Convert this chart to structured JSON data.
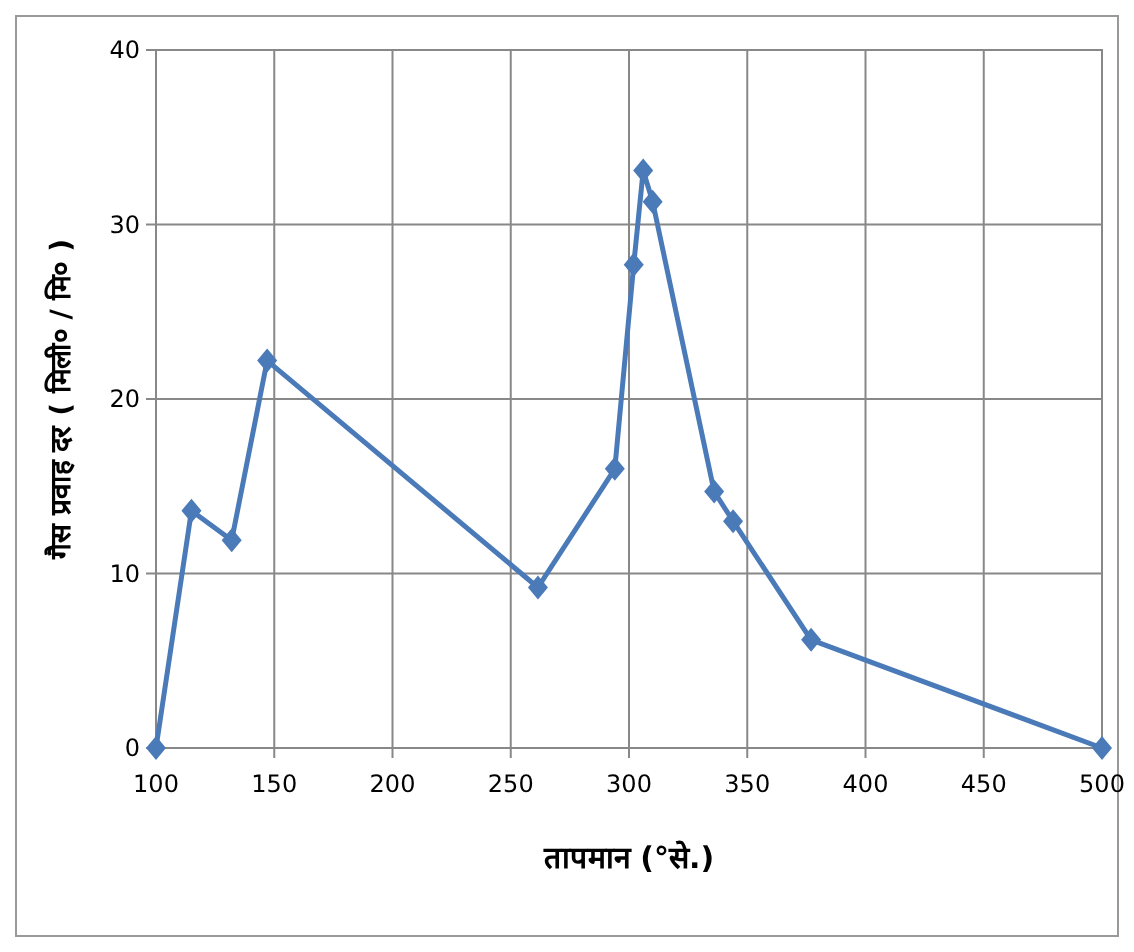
{
  "chart_data": {
    "type": "line",
    "xlabel": "तापमान (°से.)",
    "ylabel": "गैस प्रवाह दर ( मिली० / मि० )",
    "x": [
      100,
      115,
      132,
      147,
      261.5,
      294,
      302,
      306,
      310,
      336,
      344,
      377,
      500
    ],
    "series": [
      {
        "color": "#4a7ab8",
        "values": [
          0,
          13.6,
          11.9,
          22.2,
          9.2,
          16.0,
          27.7,
          33.1,
          31.3,
          14.7,
          13.0,
          6.2,
          0
        ]
      }
    ],
    "xlim": [
      100,
      500
    ],
    "ylim": [
      0,
      40
    ],
    "xticks": [
      100,
      150,
      200,
      250,
      300,
      350,
      400,
      450,
      500
    ],
    "yticks": [
      0,
      10,
      20,
      30,
      40
    ],
    "grid": true,
    "marker": "diamond",
    "line_style": "solid"
  }
}
